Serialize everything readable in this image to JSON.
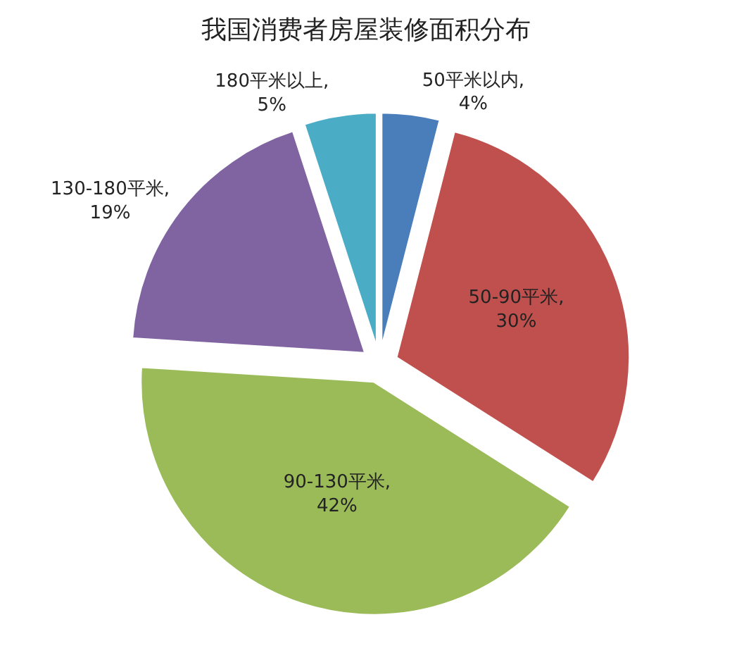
{
  "chart_data": {
    "type": "pie",
    "title": "我国消费者房屋装修面积分布",
    "categories": [
      "50平米以内",
      "50-90平米",
      "90-130平米",
      "130-180平米",
      "180平米以上"
    ],
    "values": [
      4,
      30,
      42,
      19,
      5
    ],
    "colors": [
      "#4a7ebb",
      "#c0504d",
      "#9bbb59",
      "#8064a2",
      "#4bacc6"
    ],
    "value_labels": [
      ", 4%",
      ", 30%",
      ", 42%",
      ", 19%",
      ", 5%"
    ],
    "legend": false
  }
}
